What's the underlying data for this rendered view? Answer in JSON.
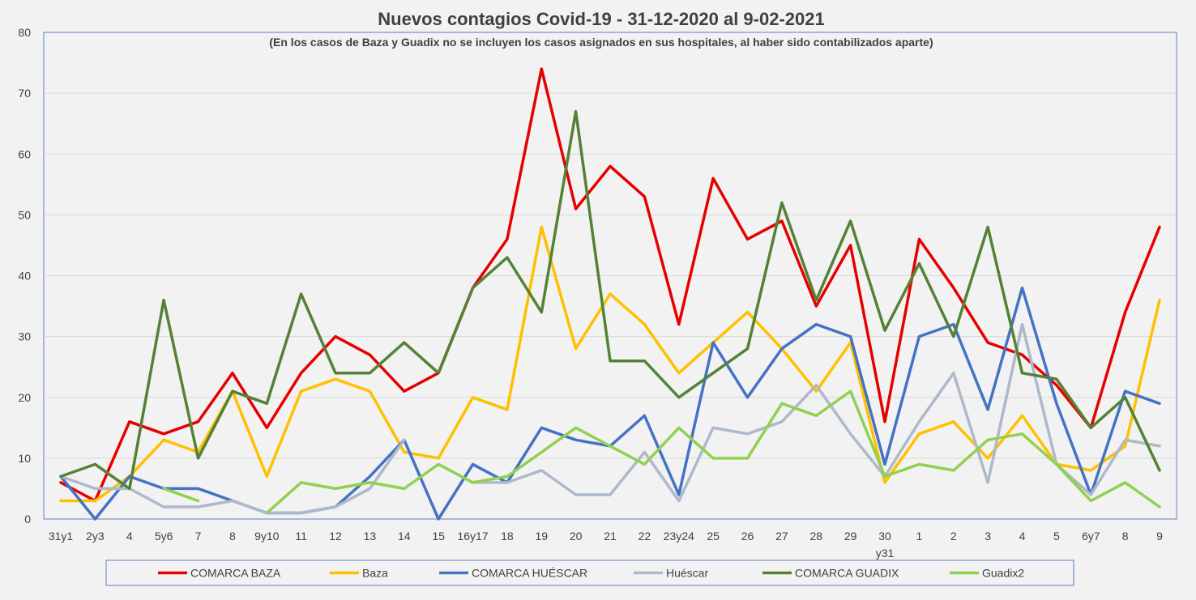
{
  "chart_data": {
    "type": "line",
    "title": "Nuevos contagios Covid-19 - 31-12-2020 al 9-02-2021",
    "subtitle": "(En los casos de Baza y Guadix no se incluyen los casos asignados en sus hospitales, al haber sido contabilizados aparte)",
    "xlabel": "",
    "ylabel": "",
    "ylim": [
      0,
      80
    ],
    "yticks": [
      "0",
      "10",
      "20",
      "30",
      "40",
      "50",
      "60",
      "70",
      "80"
    ],
    "categories": [
      "31y1",
      "2y3",
      "4",
      "5y6",
      "7",
      "8",
      "9y10",
      "11",
      "12",
      "13",
      "14",
      "15",
      "16y17",
      "18",
      "19",
      "20",
      "21",
      "22",
      "23y24",
      "25",
      "26",
      "27",
      "28",
      "29",
      "30",
      "1",
      "2",
      "3",
      "4",
      "5",
      "6y7",
      "8",
      "9"
    ],
    "category_sublabels": [
      "",
      "",
      "",
      "",
      "",
      "",
      "",
      "",
      "",
      "",
      "",
      "",
      "",
      "",
      "",
      "",
      "",
      "",
      "",
      "",
      "",
      "",
      "",
      "",
      "y31",
      "",
      "",
      "",
      "",
      "",
      "",
      "",
      ""
    ],
    "legend_position": "bottom",
    "grid": true,
    "series": [
      {
        "name": "COMARCA BAZA",
        "color": "#e60000",
        "values": [
          6,
          3,
          16,
          14,
          16,
          24,
          15,
          24,
          30,
          27,
          21,
          24,
          38,
          46,
          74,
          51,
          58,
          53,
          32,
          56,
          46,
          49,
          35,
          45,
          16,
          46,
          38,
          29,
          27,
          22,
          15,
          34,
          48
        ]
      },
      {
        "name": "Baza",
        "color": "#ffc000",
        "values": [
          3,
          3,
          7,
          13,
          11,
          21,
          7,
          21,
          23,
          21,
          11,
          10,
          20,
          18,
          48,
          28,
          37,
          32,
          24,
          29,
          34,
          28,
          21,
          29,
          6,
          14,
          16,
          10,
          17,
          9,
          8,
          12,
          36
        ]
      },
      {
        "name": "COMARCA HUÉSCAR",
        "color": "#4472c4",
        "values": [
          7,
          0,
          7,
          5,
          5,
          3,
          1,
          1,
          2,
          7,
          13,
          0,
          9,
          6,
          15,
          13,
          12,
          17,
          4,
          29,
          20,
          28,
          32,
          30,
          9,
          30,
          32,
          18,
          38,
          19,
          4,
          21,
          19
        ]
      },
      {
        "name": "Huéscar",
        "color": "#adb9ca",
        "values": [
          7,
          5,
          5,
          2,
          2,
          3,
          1,
          1,
          2,
          5,
          13,
          null,
          6,
          6,
          8,
          4,
          4,
          11,
          3,
          15,
          14,
          16,
          22,
          14,
          7,
          16,
          24,
          6,
          32,
          9,
          4,
          13,
          12
        ]
      },
      {
        "name": "COMARCA GUADIX",
        "color": "#548235",
        "values": [
          7,
          9,
          5,
          36,
          10,
          21,
          19,
          37,
          24,
          24,
          29,
          24,
          38,
          43,
          34,
          67,
          26,
          26,
          20,
          24,
          28,
          52,
          36,
          49,
          31,
          42,
          30,
          48,
          24,
          23,
          15,
          20,
          8
        ]
      },
      {
        "name": "Guadix2",
        "color": "#92d050",
        "values": [
          null,
          null,
          null,
          5,
          3,
          null,
          1,
          6,
          5,
          6,
          5,
          9,
          6,
          7,
          11,
          15,
          12,
          9,
          15,
          10,
          10,
          19,
          17,
          21,
          7,
          9,
          8,
          13,
          14,
          9,
          3,
          6,
          2
        ]
      }
    ]
  }
}
